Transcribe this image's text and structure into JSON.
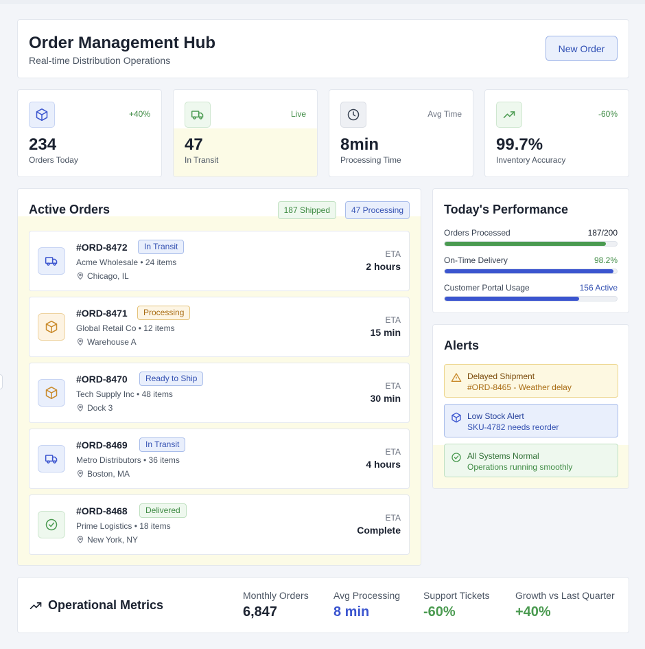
{
  "header": {
    "title": "Order Management Hub",
    "subtitle": "Real-time Distribution Operations",
    "new_order_label": "New Order"
  },
  "stats": [
    {
      "meta": "+40%",
      "value": "234",
      "label": "Orders Today",
      "icon": "package-icon"
    },
    {
      "meta": "Live",
      "value": "47",
      "label": "In Transit",
      "icon": "truck-icon"
    },
    {
      "meta": "Avg Time",
      "value": "8min",
      "label": "Processing Time",
      "icon": "clock-icon"
    },
    {
      "meta": "-60%",
      "value": "99.7%",
      "label": "Inventory Accuracy",
      "icon": "trending-up-icon"
    }
  ],
  "orders_section": {
    "title": "Active Orders",
    "shipped_pill": "187 Shipped",
    "processing_pill": "47 Processing",
    "eta_label": "ETA",
    "items": [
      {
        "id": "#ORD-8472",
        "status": "In Transit",
        "customer": "Acme Wholesale • 24 items",
        "location": "Chicago, IL",
        "eta": "2 hours",
        "icon": "truck-icon"
      },
      {
        "id": "#ORD-8471",
        "status": "Processing",
        "customer": "Global Retail Co • 12 items",
        "location": "Warehouse A",
        "eta": "15 min",
        "icon": "package-icon"
      },
      {
        "id": "#ORD-8470",
        "status": "Ready to Ship",
        "customer": "Tech Supply Inc • 48 items",
        "location": "Dock 3",
        "eta": "30 min",
        "icon": "package-icon"
      },
      {
        "id": "#ORD-8469",
        "status": "In Transit",
        "customer": "Metro Distributors • 36 items",
        "location": "Boston, MA",
        "eta": "4 hours",
        "icon": "truck-icon"
      },
      {
        "id": "#ORD-8468",
        "status": "Delivered",
        "customer": "Prime Logistics • 18 items",
        "location": "New York, NY",
        "eta": "Complete",
        "icon": "check-circle-icon"
      }
    ]
  },
  "performance": {
    "title": "Today's Performance",
    "rows": [
      {
        "label": "Orders Processed",
        "value": "187/200",
        "progress": 0.935
      },
      {
        "label": "On-Time Delivery",
        "value": "98.2%",
        "progress": 0.982
      },
      {
        "label": "Customer Portal Usage",
        "value": "156 Active",
        "progress": 0.78
      }
    ]
  },
  "alerts": {
    "title": "Alerts",
    "items": [
      {
        "title": "Delayed Shipment",
        "detail": "#ORD-8465 - Weather delay",
        "icon": "warning-icon"
      },
      {
        "title": "Low Stock Alert",
        "detail": "SKU-4782 needs reorder",
        "icon": "package-icon"
      },
      {
        "title": "All Systems Normal",
        "detail": "Operations running smoothly",
        "icon": "check-circle-icon"
      }
    ]
  },
  "metrics": {
    "title": "Operational Metrics",
    "items": [
      {
        "label": "Monthly Orders",
        "value": "6,847"
      },
      {
        "label": "Avg Processing",
        "value": "8 min"
      },
      {
        "label": "Support Tickets",
        "value": "-60%"
      },
      {
        "label": "Growth vs Last Quarter",
        "value": "+40%"
      }
    ]
  },
  "colors": {
    "accent_blue": "#3b55cf",
    "success_green": "#4a9a50",
    "warning_amber": "#c98a2b",
    "highlight_tint": "#fcfbe6"
  }
}
